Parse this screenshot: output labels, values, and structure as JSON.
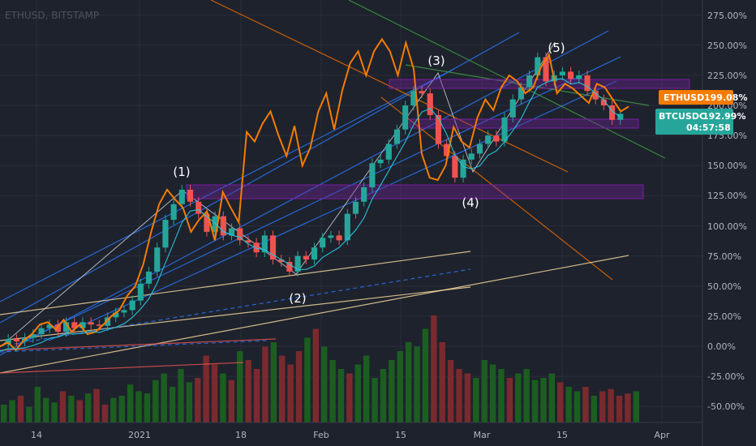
{
  "symbol": "ETHUSD, BITSTAMP",
  "colors": {
    "background": "#1e222d",
    "grid": "#2a2e39",
    "candle_up": "#26a69a",
    "candle_down": "#ef5350",
    "volume_up": "#1b5e20",
    "volume_down": "#7a2a2e",
    "overlay_line": "#f57c00",
    "zone": "#7b1fa2",
    "channel_blue": "#2979ff",
    "channel_green": "#43a047",
    "channel_orange": "#ef6c00",
    "support_yellow": "#ffe0a0"
  },
  "chart_data": {
    "type": "line",
    "y_unit": "%",
    "ylim": [
      -60,
      285
    ],
    "y_ticks": [
      "275.00%",
      "250.00%",
      "225.00%",
      "200.00%",
      "175.00%",
      "150.00%",
      "125.00%",
      "100.00%",
      "75.00%",
      "50.00%",
      "25.00%",
      "0.00%",
      "-25.00%",
      "-50.00%"
    ],
    "x_ticks": [
      "14",
      "2021",
      "18",
      "Feb",
      "15",
      "Mar",
      "15",
      "Apr"
    ],
    "grid": true,
    "series": [
      {
        "name": "ETHUSD",
        "values": [
          0,
          3,
          -3,
          5,
          10,
          18,
          20,
          14,
          22,
          12,
          18,
          10,
          12,
          18,
          25,
          30,
          42,
          50,
          68,
          95,
          118,
          130,
          122,
          115,
          95,
          105,
          112,
          88,
          128,
          115,
          103,
          178,
          170,
          185,
          195,
          175,
          158,
          183,
          150,
          165,
          195,
          210,
          180,
          212,
          235,
          245,
          225,
          245,
          255,
          245,
          225,
          252,
          230,
          160,
          140,
          138,
          150,
          182,
          170,
          165,
          190,
          205,
          196,
          215,
          225,
          220,
          210,
          215,
          232,
          242,
          210,
          218,
          214,
          208,
          202,
          218,
          215,
          205,
          195,
          199
        ]
      },
      {
        "name": "BTCUSDC",
        "values": [
          2,
          6,
          4,
          7,
          10,
          15,
          18,
          12,
          20,
          15,
          20,
          18,
          17,
          24,
          28,
          30,
          38,
          52,
          62,
          82,
          105,
          118,
          130,
          120,
          110,
          95,
          108,
          92,
          98,
          88,
          86,
          78,
          92,
          72,
          70,
          62,
          75,
          72,
          82,
          90,
          92,
          88,
          110,
          120,
          132,
          152,
          155,
          168,
          180,
          200,
          212,
          210,
          192,
          168,
          158,
          140,
          155,
          160,
          168,
          175,
          170,
          190,
          205,
          215,
          225,
          240,
          220,
          225,
          228,
          222,
          225,
          212,
          205,
          200,
          188,
          193
        ]
      }
    ],
    "last_values": {
      "ETHUSD": "199.08%",
      "BTCUSDC": "192.99%"
    },
    "countdown": "04:57:58",
    "wave_labels": [
      "(1)",
      "(2)",
      "(3)",
      "(4)",
      "(5)"
    ],
    "volume": [
      40,
      50,
      60,
      35,
      80,
      55,
      45,
      70,
      60,
      50,
      65,
      75,
      40,
      55,
      60,
      85,
      70,
      65,
      95,
      110,
      80,
      120,
      90,
      100,
      150,
      130,
      110,
      95,
      160,
      140,
      120,
      170,
      180,
      150,
      130,
      160,
      190,
      210,
      170,
      140,
      120,
      110,
      130,
      150,
      100,
      120,
      140,
      160,
      180,
      170,
      210,
      240,
      180,
      140,
      120,
      110,
      100,
      140,
      130,
      120,
      100,
      110,
      120,
      95,
      100,
      110,
      90,
      80,
      70,
      80,
      60,
      70,
      75,
      60,
      65,
      70
    ]
  }
}
